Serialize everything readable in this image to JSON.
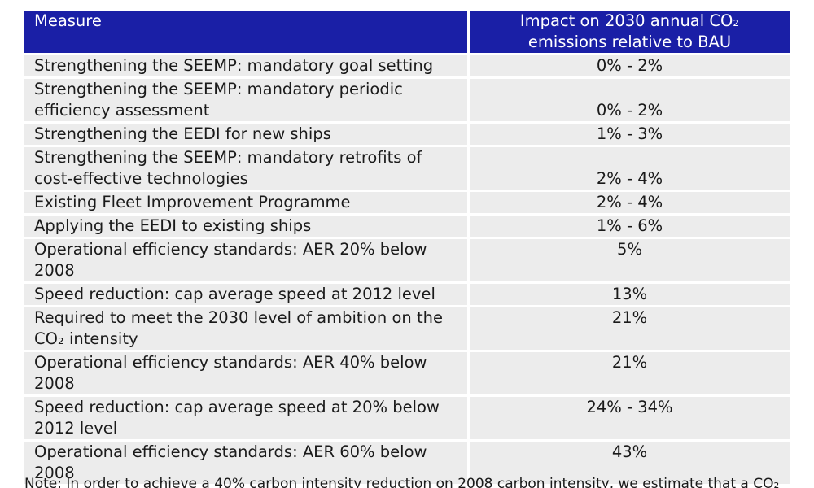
{
  "header": {
    "measure": "Measure",
    "impact_line1": "Impact on 2030 annual CO₂",
    "impact_line2": "emissions relative to BAU"
  },
  "rows": [
    {
      "measure": "Strengthening the SEEMP: mandatory goal setting",
      "impact": "0% - 2%",
      "align": "bottom"
    },
    {
      "measure": "Strengthening the SEEMP: mandatory periodic efficiency assessment",
      "impact": "0% - 2%",
      "align": "bottom"
    },
    {
      "measure": "Strengthening the EEDI for new ships",
      "impact": "1% - 3%",
      "align": "bottom"
    },
    {
      "measure": "Strengthening the SEEMP: mandatory retrofits of cost-effective technologies",
      "impact": "2% - 4%",
      "align": "bottom"
    },
    {
      "measure": "Existing Fleet Improvement Programme",
      "impact": "2% - 4%",
      "align": "bottom"
    },
    {
      "measure": "Applying the EEDI to existing ships",
      "impact": "1% - 6%",
      "align": "bottom"
    },
    {
      "measure": "Operational efficiency standards: AER 20% below 2008",
      "impact": "5%",
      "align": "top"
    },
    {
      "measure": "Speed reduction: cap average speed at 2012 level",
      "impact": "13%",
      "align": "top"
    },
    {
      "measure": "Required to meet the 2030 level of ambition on the CO₂ intensity",
      "impact": "21%",
      "align": "top"
    },
    {
      "measure": "Operational efficiency standards: AER 40% below 2008",
      "impact": "21%",
      "align": "top"
    },
    {
      "measure": "Speed reduction: cap average speed at 20% below 2012 level",
      "impact": "24% - 34%",
      "align": "top"
    },
    {
      "measure": "Operational efficiency standards: AER 60% below 2008",
      "impact": "43%",
      "align": "top"
    }
  ],
  "note": "Note: In order to achieve a 40% carbon intensity reduction on 2008 carbon intensity, we estimate that a CO₂"
}
